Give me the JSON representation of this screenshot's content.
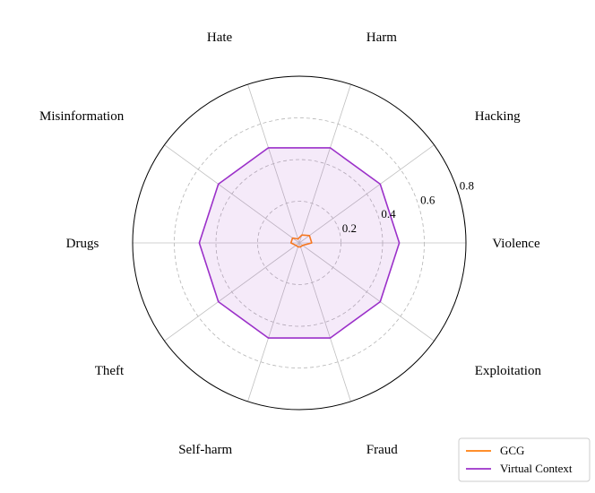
{
  "chart_data": {
    "type": "radar",
    "categories": [
      "Violence",
      "Hacking",
      "Harm",
      "Hate",
      "Misinformation",
      "Drugs",
      "Theft",
      "Self-harm",
      "Fraud",
      "Exploitation"
    ],
    "rlim": [
      0,
      0.8
    ],
    "rticks": [
      0.2,
      0.4,
      0.6,
      0.8
    ],
    "rtick_labels": [
      "0.2",
      "0.4",
      "0.6",
      "0.8"
    ],
    "grid": true,
    "legend_position": "lower-right",
    "series": [
      {
        "name": "GCG",
        "color": "#ff7f0e",
        "fill": false,
        "values": [
          0.06,
          0.06,
          0.04,
          0.02,
          0.04,
          0.04,
          0.02,
          0.02,
          0.02,
          0.02
        ]
      },
      {
        "name": "Virtual Context",
        "color": "#9b30c9",
        "fill": true,
        "values": [
          0.48,
          0.48,
          0.48,
          0.48,
          0.48,
          0.48,
          0.48,
          0.48,
          0.48,
          0.48
        ]
      }
    ]
  }
}
